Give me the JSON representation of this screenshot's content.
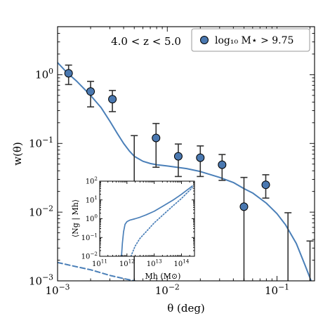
{
  "chart_data": [
    {
      "type": "scatter",
      "title": "",
      "xlabel": "θ (deg)",
      "ylabel": "w(θ)",
      "xscale": "log",
      "yscale": "log",
      "xlim": [
        0.001,
        0.22
      ],
      "ylim": [
        0.001,
        5
      ],
      "x_ticks": [
        {
          "value": 0.001,
          "base": "10",
          "exp": "−3"
        },
        {
          "value": 0.01,
          "base": "10",
          "exp": "−2"
        },
        {
          "value": 0.1,
          "base": "10",
          "exp": "−1"
        }
      ],
      "y_ticks": [
        {
          "value": 0.001,
          "base": "10",
          "exp": "−3"
        },
        {
          "value": 0.01,
          "base": "10",
          "exp": "−2"
        },
        {
          "value": 0.1,
          "base": "10",
          "exp": "−1"
        },
        {
          "value": 1,
          "base": "10",
          "exp": "0"
        }
      ],
      "annotation": "4.0 < z < 5.0",
      "legend": {
        "placement": "top-right",
        "label": "log₁₀ M⋆ > 9.75"
      },
      "grid": false,
      "colors": {
        "points": "#4a78b0",
        "model": "#4a7fb8",
        "errorbar": "#333333"
      },
      "series": [
        {
          "name": "log₁₀ M⋆ > 9.75",
          "kind": "points",
          "points": [
            {
              "x": 0.00126,
              "y": 1.05,
              "lo": 0.72,
              "hi": 1.38
            },
            {
              "x": 0.002,
              "y": 0.57,
              "lo": 0.34,
              "hi": 0.8
            },
            {
              "x": 0.00316,
              "y": 0.44,
              "lo": 0.29,
              "hi": 0.59
            },
            {
              "x": 0.005,
              "y": 0.024,
              "lo": 0.001,
              "hi": 0.13
            },
            {
              "x": 0.0079,
              "y": 0.12,
              "lo": 0.045,
              "hi": 0.195
            },
            {
              "x": 0.0126,
              "y": 0.065,
              "lo": 0.033,
              "hi": 0.098
            },
            {
              "x": 0.02,
              "y": 0.062,
              "lo": 0.033,
              "hi": 0.092
            },
            {
              "x": 0.0316,
              "y": 0.049,
              "lo": 0.029,
              "hi": 0.069
            },
            {
              "x": 0.05,
              "y": 0.012,
              "lo": 0.001,
              "hi": 0.032
            },
            {
              "x": 0.079,
              "y": 0.025,
              "lo": 0.016,
              "hi": 0.035
            },
            {
              "x": 0.126,
              "y": null,
              "lo": 0.001,
              "hi": 0.0098
            },
            {
              "x": 0.2,
              "y": null,
              "lo": 0.001,
              "hi": 0.0038
            }
          ]
        },
        {
          "kind": "line",
          "style": "solid",
          "x": [
            0.001,
            0.0012,
            0.0015,
            0.002,
            0.0025,
            0.003,
            0.0035,
            0.004,
            0.0045,
            0.005,
            0.006,
            0.007,
            0.008,
            0.01,
            0.015,
            0.02,
            0.03,
            0.04,
            0.05,
            0.06,
            0.08,
            0.1,
            0.12,
            0.15,
            0.18,
            0.2,
            0.21
          ],
          "y": [
            1.5,
            1.1,
            0.8,
            0.5,
            0.33,
            0.21,
            0.14,
            0.1,
            0.078,
            0.065,
            0.055,
            0.051,
            0.049,
            0.047,
            0.043,
            0.039,
            0.032,
            0.027,
            0.022,
            0.019,
            0.0135,
            0.0095,
            0.0065,
            0.0035,
            0.0017,
            0.0011,
            0.0009
          ]
        },
        {
          "kind": "line",
          "style": "dashed",
          "x": [
            0.001,
            0.0015,
            0.002,
            0.003,
            0.004,
            0.005,
            0.006
          ],
          "y": [
            0.00185,
            0.0016,
            0.00145,
            0.0012,
            0.00108,
            0.001,
            0.00095
          ]
        }
      ]
    },
    {
      "type": "line",
      "title": "",
      "xlabel": "Mh (M⊙)",
      "ylabel": "⟨Ng | Mh⟩",
      "xscale": "log",
      "yscale": "log",
      "xlim": [
        100000000000.0,
        300000000000000.0
      ],
      "ylim": [
        0.01,
        100
      ],
      "x_ticks": [
        {
          "value": 100000000000.0,
          "base": "10",
          "exp": "11"
        },
        {
          "value": 1000000000000.0,
          "base": "10",
          "exp": "12"
        },
        {
          "value": 10000000000000.0,
          "base": "10",
          "exp": "13"
        },
        {
          "value": 100000000000000.0,
          "base": "10",
          "exp": "14"
        }
      ],
      "y_ticks": [
        {
          "value": 0.01,
          "base": "10",
          "exp": "−2"
        },
        {
          "value": 0.1,
          "base": "10",
          "exp": "−1"
        },
        {
          "value": 1,
          "base": "10",
          "exp": "0"
        },
        {
          "value": 10,
          "base": "10",
          "exp": "1"
        },
        {
          "value": 100,
          "base": "10",
          "exp": "2"
        }
      ],
      "series": [
        {
          "kind": "line",
          "style": "solid",
          "x": [
            630000000000.0,
            680000000000.0,
            750000000000.0,
            850000000000.0,
            1000000000000.0,
            1300000000000.0,
            2000000000000.0,
            3000000000000.0,
            5000000000000.0,
            10000000000000.0,
            20000000000000.0,
            50000000000000.0,
            100000000000000.0,
            250000000000000.0
          ],
          "y": [
            0.01,
            0.05,
            0.2,
            0.5,
            0.7,
            0.85,
            1.0,
            1.2,
            1.6,
            2.5,
            4.5,
            10,
            20,
            55
          ]
        },
        {
          "kind": "line",
          "style": "dotted",
          "x": [
            1400000000000.0,
            1700000000000.0,
            2000000000000.0,
            3000000000000.0,
            5000000000000.0,
            10000000000000.0,
            20000000000000.0,
            50000000000000.0,
            100000000000000.0,
            250000000000000.0
          ],
          "y": [
            0.01,
            0.02,
            0.035,
            0.09,
            0.2,
            0.6,
            1.5,
            5,
            12,
            45
          ]
        }
      ]
    }
  ]
}
